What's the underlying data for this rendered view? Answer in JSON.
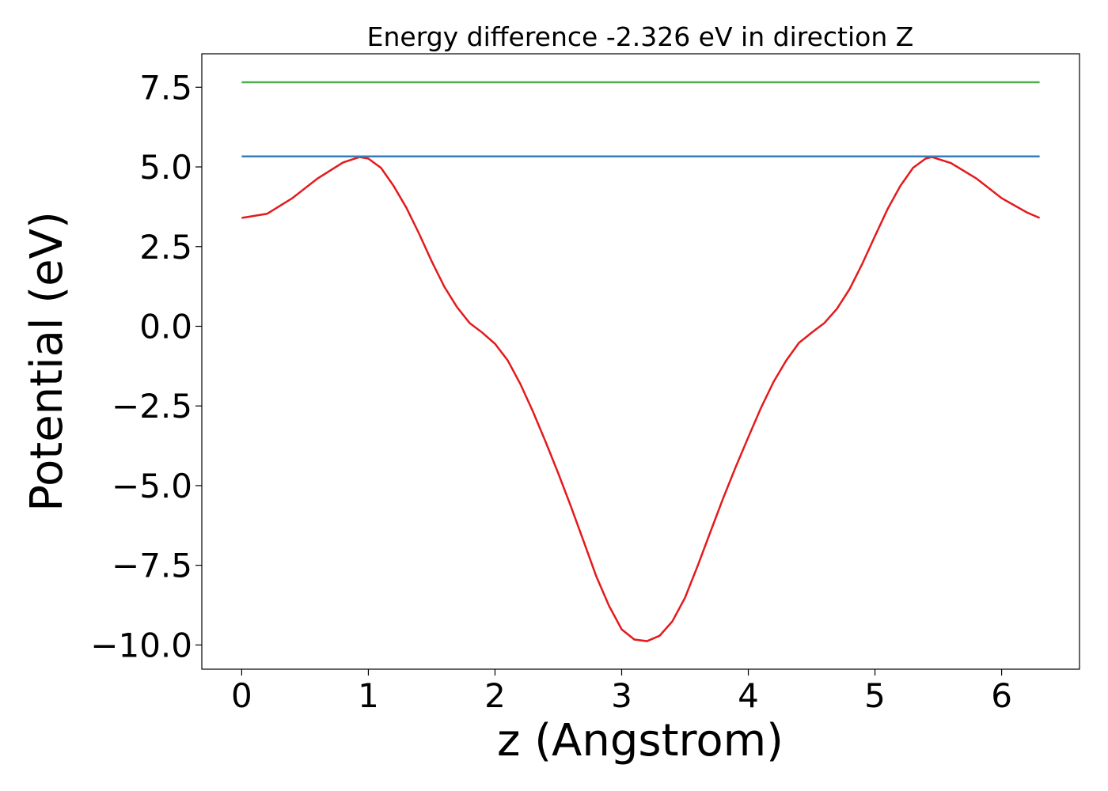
{
  "chart_data": {
    "type": "line",
    "title": "Energy difference -2.326 eV in direction Z",
    "xlabel": "z (Angstrom)",
    "ylabel": "Potential (eV)",
    "xlim": [
      -0.315,
      6.615
    ],
    "ylim": [
      -10.76,
      8.55
    ],
    "xticks": [
      0,
      1,
      2,
      3,
      4,
      5,
      6
    ],
    "yticks": [
      7.5,
      {
        "value": 5,
        "label": "5.0"
      },
      2.5,
      {
        "value": 0,
        "label": "0.0"
      },
      {
        "value": -2.5,
        "label": "−2.5"
      },
      {
        "value": -5,
        "label": "−5.0"
      },
      {
        "value": -7.5,
        "label": "−7.5"
      },
      {
        "value": -10,
        "label": "−10.0"
      }
    ],
    "grid": false,
    "series": [
      {
        "color": "#e41a1c",
        "x": [
          0,
          0.2,
          0.4,
          0.6,
          0.8,
          0.93,
          1.0,
          1.1,
          1.2,
          1.3,
          1.4,
          1.5,
          1.6,
          1.7,
          1.8,
          1.9,
          2.0,
          2.1,
          2.2,
          2.3,
          2.4,
          2.5,
          2.6,
          2.7,
          2.8,
          2.9,
          3.0,
          3.1,
          3.2,
          3.3,
          3.4,
          3.5,
          3.6,
          3.7,
          3.8,
          3.9,
          4.0,
          4.1,
          4.2,
          4.3,
          4.4,
          4.5,
          4.6,
          4.7,
          4.8,
          4.9,
          5.0,
          5.1,
          5.2,
          5.3,
          5.4,
          5.45,
          5.6,
          5.8,
          6.0,
          6.2,
          6.3
        ],
        "values": [
          3.4,
          3.53,
          4.02,
          4.64,
          5.14,
          5.31,
          5.26,
          4.97,
          4.4,
          3.72,
          2.91,
          2.04,
          1.24,
          0.6,
          0.1,
          -0.2,
          -0.55,
          -1.07,
          -1.81,
          -2.68,
          -3.63,
          -4.62,
          -5.66,
          -6.75,
          -7.85,
          -8.77,
          -9.51,
          -9.83,
          -9.88,
          -9.71,
          -9.26,
          -8.52,
          -7.52,
          -6.46,
          -5.41,
          -4.42,
          -3.48,
          -2.56,
          -1.74,
          -1.07,
          -0.52,
          -0.2,
          0.1,
          0.55,
          1.17,
          1.96,
          2.83,
          3.68,
          4.4,
          4.97,
          5.26,
          5.31,
          5.12,
          4.64,
          4.02,
          3.57,
          3.4
        ]
      },
      {
        "color": "#377eb8",
        "x": [
          0,
          6.3
        ],
        "values": [
          5.33,
          5.33
        ]
      },
      {
        "color": "#4daf4a",
        "x": [
          0,
          6.3
        ],
        "values": [
          7.656,
          7.656
        ]
      }
    ]
  }
}
